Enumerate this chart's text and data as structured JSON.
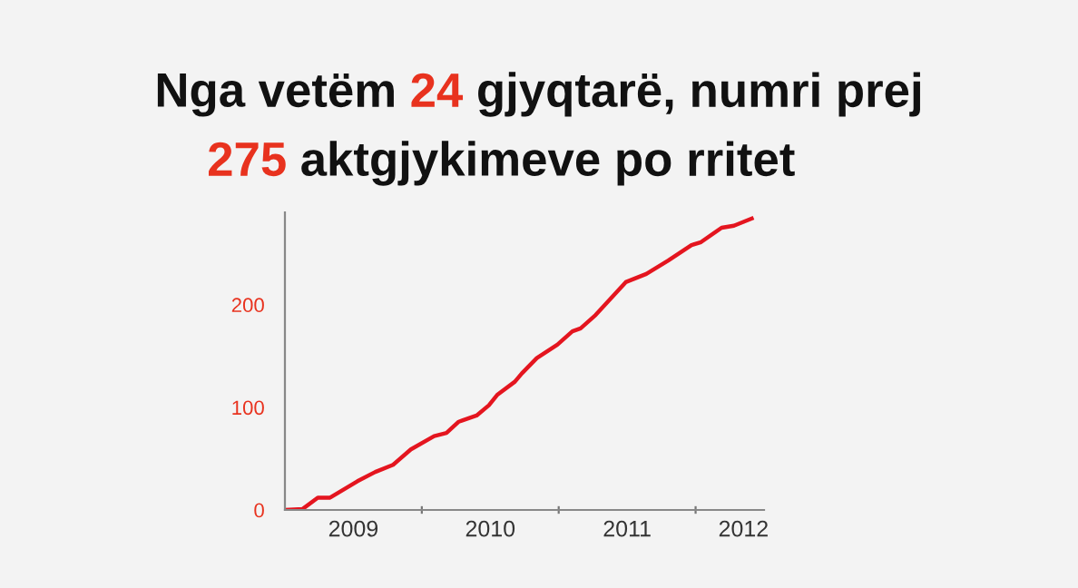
{
  "chart_data": {
    "type": "line",
    "title": "Nga vetëm 24 gjyqtarë, numri prej\n275 aktgjykimeve po rritet",
    "x": [
      2009.0,
      2009.13,
      2009.24,
      2009.33,
      2009.53,
      2009.66,
      2009.79,
      2009.92,
      2010.09,
      2010.18,
      2010.27,
      2010.4,
      2010.49,
      2010.55,
      2010.68,
      2010.73,
      2010.84,
      2010.99,
      2011.1,
      2011.16,
      2011.27,
      2011.38,
      2011.49,
      2011.64,
      2011.8,
      2011.97,
      2012.04,
      2012.19,
      2012.28,
      2012.41
    ],
    "series": [
      {
        "color": "#e4151f",
        "values": [
          0,
          1,
          12,
          12,
          28,
          37,
          44,
          59,
          72,
          75,
          86,
          92,
          102,
          112,
          125,
          133,
          148,
          161,
          174,
          177,
          190,
          206,
          222,
          230,
          243,
          258,
          261,
          275,
          277,
          284
        ]
      }
    ],
    "xlim": [
      2009.0,
      2012.5
    ],
    "xticks": [
      {
        "value": 2009.5,
        "label": "2009"
      },
      {
        "value": 2010.0,
        "label": null
      },
      {
        "value": 2010.5,
        "label": "2010"
      },
      {
        "value": 2011.0,
        "label": null
      },
      {
        "value": 2011.5,
        "label": "2011"
      },
      {
        "value": 2012.0,
        "label": null
      },
      {
        "value": 2012.35,
        "label": "2012"
      }
    ],
    "ylim": [
      0,
      290
    ],
    "yticks": [
      0,
      100,
      200
    ],
    "grid": false,
    "legend": false,
    "marker": "none",
    "line_style": "solid"
  }
}
